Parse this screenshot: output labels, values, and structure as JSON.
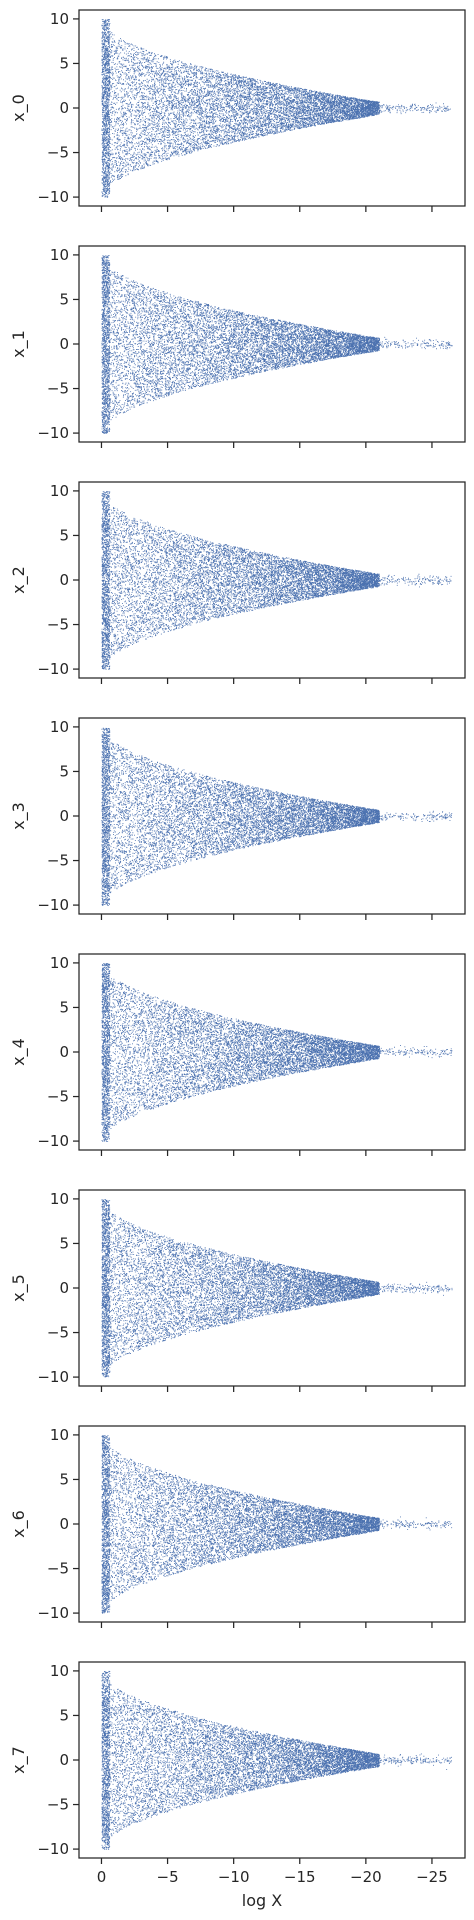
{
  "chart_data": {
    "type": "scatter",
    "layout": "vertical stack of 8 panels with shared x-axis",
    "xlabel": "log X",
    "x_range": [
      1.7,
      -27.5
    ],
    "x_ticks": [
      0,
      -5,
      -10,
      -15,
      -20,
      -25
    ],
    "x_tick_labels": [
      "0",
      "−5",
      "−10",
      "−15",
      "−20",
      "−25"
    ],
    "y_range": [
      -11,
      11
    ],
    "y_ticks": [
      10,
      5,
      0,
      -5,
      -10
    ],
    "y_tick_labels": [
      "10",
      "5",
      "0",
      "−5",
      "−10"
    ],
    "grid": false,
    "point_color": "#4c72b0",
    "point_envelope": {
      "description": "dense cloud of points, uniform in y over [-10, 10] near log X = 0, narrowing toward y = 0 as log X decreases",
      "x_min": -26.5,
      "x_max": 0,
      "y_half_width_at_x0": 10,
      "x_of_tip": -21
    },
    "panels": [
      {
        "ylabel": "x_0"
      },
      {
        "ylabel": "x_1"
      },
      {
        "ylabel": "x_2"
      },
      {
        "ylabel": "x_3"
      },
      {
        "ylabel": "x_4"
      },
      {
        "ylabel": "x_5"
      },
      {
        "ylabel": "x_6"
      },
      {
        "ylabel": "x_7"
      }
    ]
  }
}
